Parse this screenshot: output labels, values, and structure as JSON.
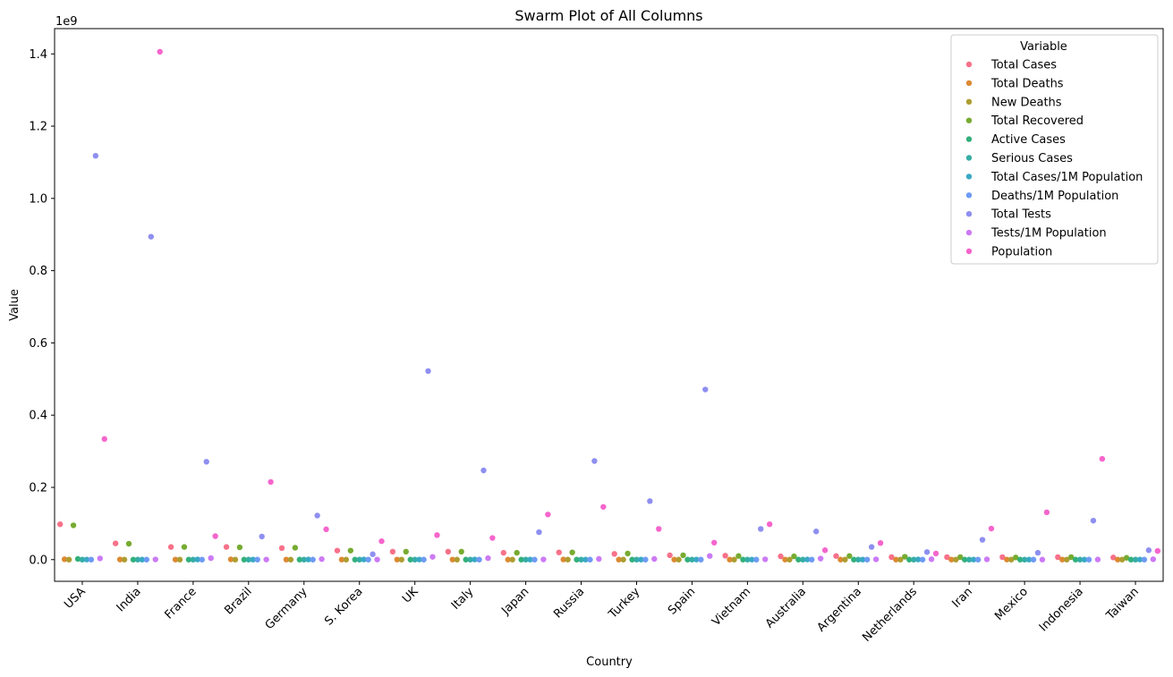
{
  "chart_data": {
    "type": "scatter",
    "subtype": "swarm",
    "title": "Swarm Plot of All Columns",
    "xlabel": "Country",
    "ylabel": "Value",
    "y_offset_text": "1e9",
    "ylim": [
      -0.06,
      1.47
    ],
    "yticks": [
      0.0,
      0.2,
      0.4,
      0.6,
      0.8,
      1.0,
      1.2,
      1.4
    ],
    "ytick_labels": [
      "0.0",
      "0.2",
      "0.4",
      "0.6",
      "0.8",
      "1.0",
      "1.2",
      "1.4"
    ],
    "categories": [
      "USA",
      "India",
      "France",
      "Brazil",
      "Germany",
      "S. Korea",
      "UK",
      "Italy",
      "Japan",
      "Russia",
      "Turkey",
      "Spain",
      "Vietnam",
      "Australia",
      "Argentina",
      "Netherlands",
      "Iran",
      "Mexico",
      "Indonesia",
      "Taiwan"
    ],
    "legend_title": "Variable",
    "legend_position": "top-right",
    "grid": false,
    "series": [
      {
        "name": "Total Cases",
        "color": "#f77189",
        "values": [
          0.098,
          0.045,
          0.035,
          0.035,
          0.032,
          0.025,
          0.022,
          0.022,
          0.019,
          0.02,
          0.016,
          0.012,
          0.011,
          0.009,
          0.01,
          0.007,
          0.007,
          0.007,
          0.007,
          0.006
        ]
      },
      {
        "name": "Total Deaths",
        "color": "#dc8932",
        "values": [
          0.0011,
          0.0005,
          0.0002,
          0.0007,
          0.0002,
          0.0001,
          0.0002,
          0.0002,
          0.0001,
          0.0004,
          0.0001,
          0.0001,
          0.0001,
          0.0001,
          0.0001,
          0.0001,
          0.0001,
          0.0003,
          0.0002,
          0.0001
        ]
      },
      {
        "name": "New Deaths",
        "color": "#ae9d31",
        "values": [
          0.0,
          0.0,
          0.0,
          0.0,
          0.0,
          0.0,
          0.0,
          0.0,
          0.0,
          0.0,
          0.0,
          0.0,
          0.0,
          0.0,
          0.0,
          0.0,
          0.0,
          0.0,
          0.0,
          0.0
        ]
      },
      {
        "name": "Total Recovered",
        "color": "#77ab31",
        "values": [
          0.095,
          0.044,
          0.035,
          0.034,
          0.033,
          0.025,
          0.022,
          0.022,
          0.019,
          0.02,
          0.017,
          0.012,
          0.01,
          0.009,
          0.01,
          0.008,
          0.007,
          0.006,
          0.007,
          0.005
        ]
      },
      {
        "name": "Active Cases",
        "color": "#33b07a",
        "values": [
          0.002,
          0.0,
          0.0,
          0.0,
          0.0,
          0.0,
          0.0,
          0.0,
          0.0,
          0.0,
          0.0,
          0.0,
          0.0,
          0.0,
          0.0,
          0.0,
          0.0,
          0.0,
          0.0,
          0.0
        ]
      },
      {
        "name": "Serious Cases",
        "color": "#36ada4",
        "values": [
          0.0,
          0.0,
          0.0,
          0.0,
          0.0,
          0.0,
          0.0,
          0.0,
          0.0,
          0.0,
          0.0,
          0.0,
          0.0,
          0.0,
          0.0,
          0.0,
          0.0,
          0.0,
          0.0,
          0.0
        ]
      },
      {
        "name": "Total Cases/1M Population",
        "color": "#38a9c5",
        "values": [
          0.0003,
          0.0,
          0.0005,
          0.0002,
          0.0004,
          0.0005,
          0.0003,
          0.0004,
          0.0002,
          0.0001,
          0.0002,
          0.0003,
          0.0001,
          0.0004,
          0.0002,
          0.0005,
          0.0001,
          0.0001,
          0.0,
          0.0003
        ]
      },
      {
        "name": "Deaths/1M Population",
        "color": "#6e9bf4",
        "values": [
          0.0,
          0.0,
          0.0,
          0.0,
          0.0,
          0.0,
          0.0,
          0.0,
          0.0,
          0.0,
          0.0,
          0.0,
          0.0,
          0.0,
          0.0,
          0.0,
          0.0,
          0.0,
          0.0,
          0.0
        ]
      },
      {
        "name": "Total Tests",
        "color": "#8e8ff0",
        "values": [
          1.118,
          0.894,
          0.271,
          0.064,
          0.122,
          0.015,
          0.522,
          0.247,
          0.076,
          0.273,
          0.162,
          0.471,
          0.085,
          0.078,
          0.035,
          0.021,
          0.055,
          0.019,
          0.108,
          0.026
        ]
      },
      {
        "name": "Tests/1M Population",
        "color": "#cc7af4",
        "values": [
          0.0034,
          0.0006,
          0.0042,
          0.0003,
          0.0015,
          0.0003,
          0.0077,
          0.0041,
          0.0006,
          0.0019,
          0.0019,
          0.0101,
          0.0009,
          0.003,
          0.0008,
          0.0012,
          0.0007,
          0.0001,
          0.0004,
          0.0011
        ]
      },
      {
        "name": "Population",
        "color": "#f565cc",
        "values": [
          0.334,
          1.406,
          0.065,
          0.215,
          0.084,
          0.051,
          0.068,
          0.06,
          0.125,
          0.146,
          0.085,
          0.047,
          0.098,
          0.026,
          0.046,
          0.017,
          0.086,
          0.131,
          0.279,
          0.024
        ]
      }
    ]
  }
}
